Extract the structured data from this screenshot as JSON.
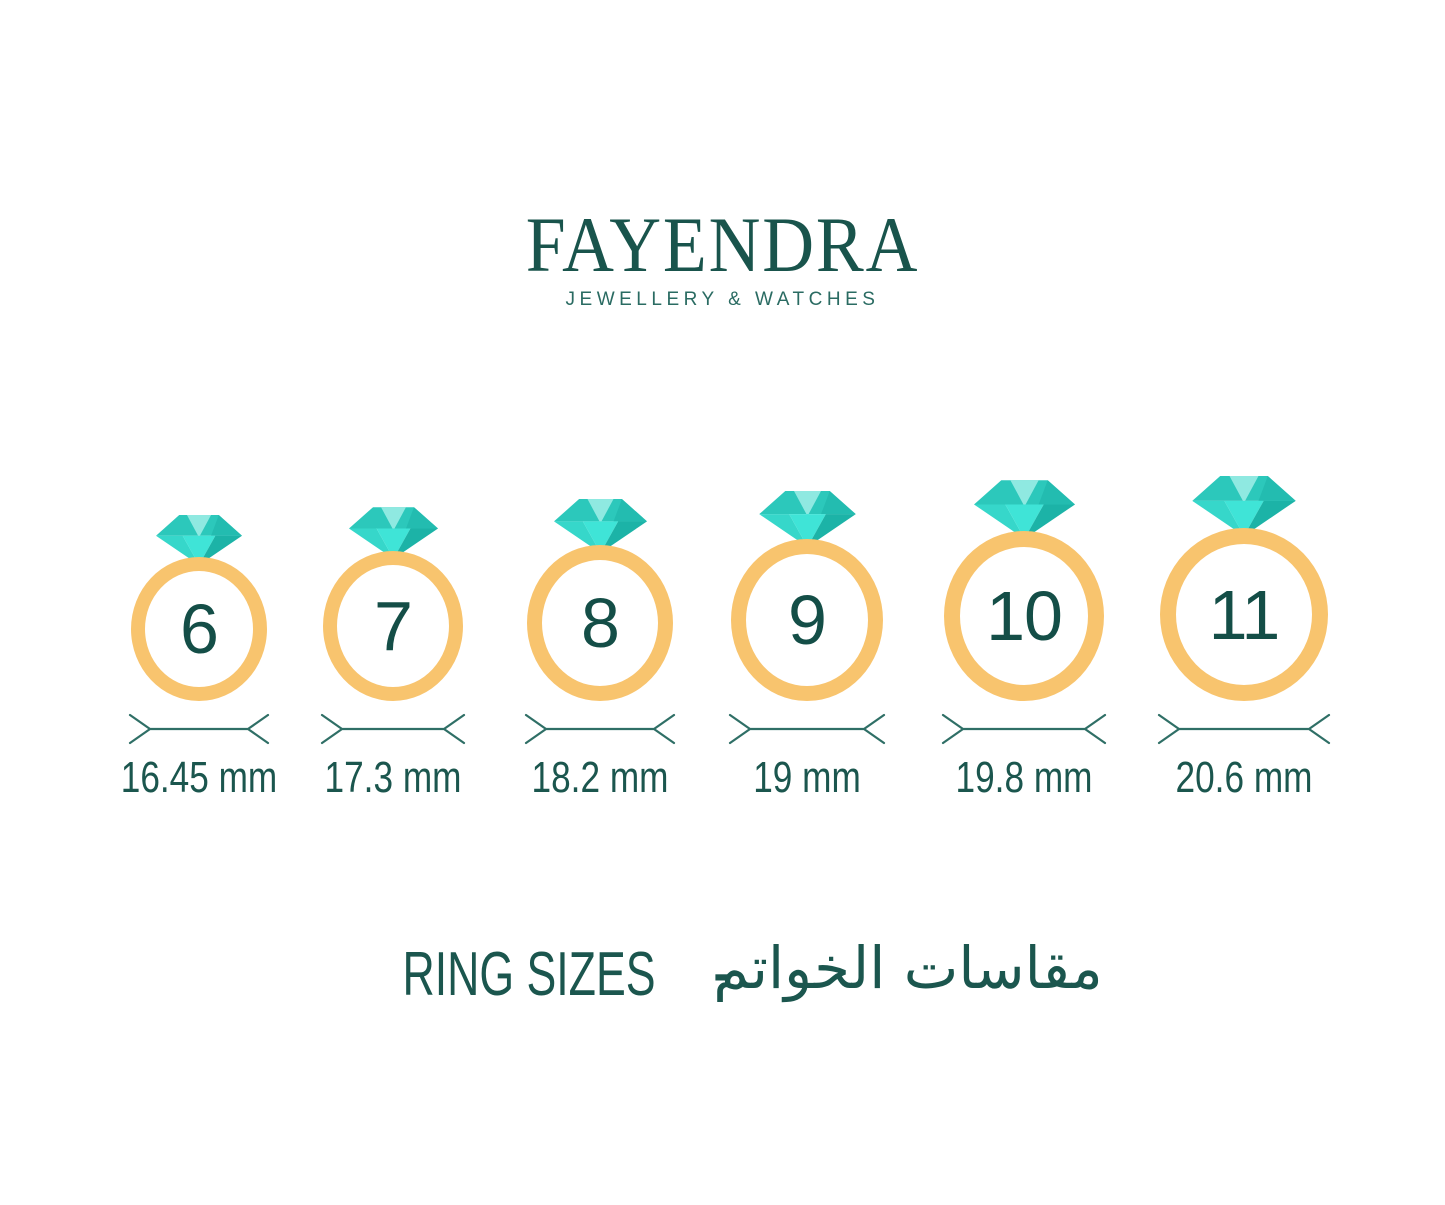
{
  "brand": {
    "name": "FAYENDRA",
    "tagline": "JEWELLERY & WATCHES"
  },
  "rings": [
    {
      "size": "6",
      "diameter": "16.45 mm"
    },
    {
      "size": "7",
      "diameter": "17.3 mm"
    },
    {
      "size": "8",
      "diameter": "18.2 mm"
    },
    {
      "size": "9",
      "diameter": "19 mm"
    },
    {
      "size": "10",
      "diameter": "19.8 mm"
    },
    {
      "size": "11",
      "diameter": "20.6 mm"
    }
  ],
  "caption": {
    "en": "RING SIZES",
    "separator": "-",
    "ar": "مقاسات الخواتم"
  },
  "colors": {
    "text": "#1B564E",
    "logo": "#19544C",
    "band": "#F8C46E",
    "number": "#144E47",
    "dimension_line": "#2F6F66",
    "diamond_facet_mid": "#2CC8BB",
    "diamond_facet_shadow": "#23BCB0",
    "diamond_facet_pale": "#8FE9E1",
    "diamond_facet_left": "#36D7CA",
    "diamond_facet_bright": "#3FE4D7",
    "diamond_facet_dark": "#1CB3A7"
  }
}
